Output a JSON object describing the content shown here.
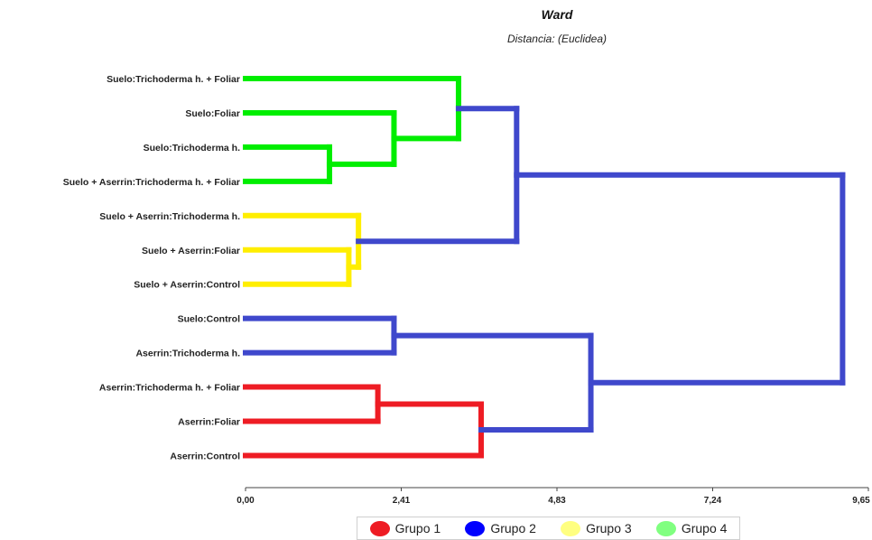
{
  "chart_data": {
    "type": "dendrogram",
    "title": "Ward",
    "subtitle": "Distancia: (Euclidea)",
    "x_ticks": [
      "0,00",
      "2,41",
      "4,83",
      "7,24",
      "9,65"
    ],
    "xlim": [
      0,
      9.65
    ],
    "leaves": [
      "Suelo:Trichoderma h. + Foliar",
      "Suelo:Foliar",
      "Suelo:Trichoderma h.",
      "Suelo + Aserrin:Trichoderma h. + Foliar",
      "Suelo + Aserrin:Trichoderma h.",
      "Suelo + Aserrin:Foliar",
      "Suelo + Aserrin:Control",
      "Suelo:Control",
      "Aserrin:Trichoderma h.",
      "Aserrin:Trichoderma h. + Foliar",
      "Aserrin:Foliar",
      "Aserrin:Control"
    ],
    "merges": [
      {
        "id": "m1",
        "a": "L2",
        "b": "L3",
        "height": 1.3,
        "color": "#00ee00"
      },
      {
        "id": "m2",
        "a": "L1",
        "b": "m1",
        "height": 2.3,
        "color": "#00ee00"
      },
      {
        "id": "m3",
        "a": "L0",
        "b": "m2",
        "height": 3.3,
        "color": "#00ee00"
      },
      {
        "id": "m4",
        "a": "L5",
        "b": "L6",
        "height": 1.6,
        "color": "#ffee00"
      },
      {
        "id": "m5",
        "a": "L4",
        "b": "m4",
        "height": 1.75,
        "color": "#ffee00"
      },
      {
        "id": "m6",
        "a": "m3",
        "b": "m5",
        "height": 4.2,
        "color": "#3f48cc"
      },
      {
        "id": "m7",
        "a": "L7",
        "b": "L8",
        "height": 2.3,
        "color": "#3f48cc"
      },
      {
        "id": "m8",
        "a": "L9",
        "b": "L10",
        "height": 2.05,
        "color": "#ee1c24"
      },
      {
        "id": "m9",
        "a": "m8",
        "b": "L11",
        "height": 3.65,
        "color": "#ee1c24"
      },
      {
        "id": "m10",
        "a": "m7",
        "b": "m9",
        "height": 5.35,
        "color": "#3f48cc"
      },
      {
        "id": "m11",
        "a": "m6",
        "b": "m10",
        "height": 9.25,
        "color": "#3f48cc"
      }
    ],
    "leaf_stub_colors": [
      "#00ee00",
      "#00ee00",
      "#00ee00",
      "#00ee00",
      "#ffee00",
      "#ffee00",
      "#ffee00",
      "#3f48cc",
      "#3f48cc",
      "#ee1c24",
      "#ee1c24",
      "#ee1c24"
    ],
    "legend": [
      {
        "label": "Grupo 1",
        "color": "#ee1c24"
      },
      {
        "label": "Grupo 2",
        "color": "#0000ff"
      },
      {
        "label": "Grupo 3",
        "color": "#ffff80"
      },
      {
        "label": "Grupo 4",
        "color": "#80ff80"
      }
    ]
  }
}
